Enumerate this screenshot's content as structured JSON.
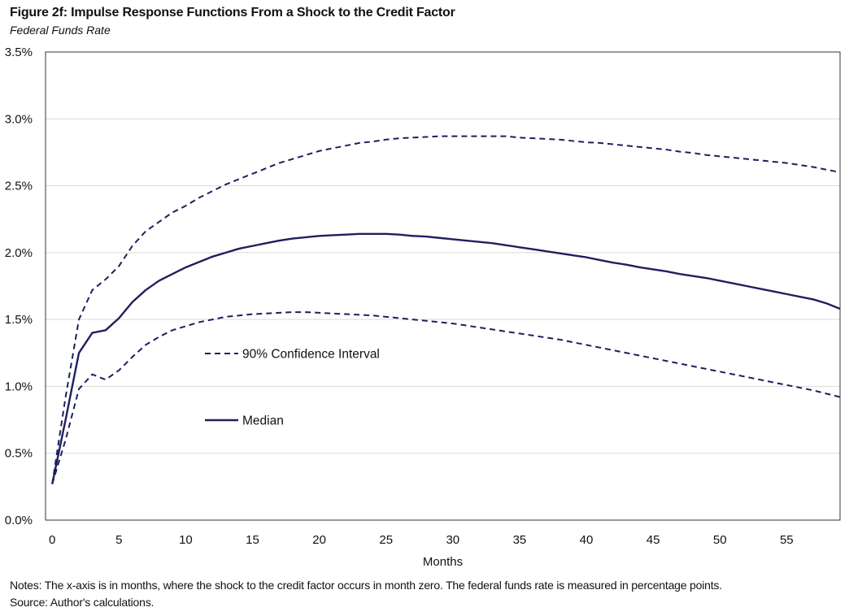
{
  "figure": {
    "title": "Figure 2f: Impulse Response Functions From a Shock to the Credit Factor",
    "subtitle": "Federal Funds Rate",
    "notes": "Notes: The x-axis is in months, where the shock to the credit factor occurs in month zero. The federal funds rate is measured in percentage points.",
    "source": "Source: Author's calculations."
  },
  "chart_data": {
    "type": "line",
    "title": "Figure 2f: Impulse Response Functions From a Shock to the Credit Factor",
    "subtitle": "Federal Funds Rate",
    "xlabel": "Months",
    "ylabel": "",
    "xlim": [
      -0.5,
      59
    ],
    "ylim": [
      0,
      3.5
    ],
    "x_ticks": [
      0,
      5,
      10,
      15,
      20,
      25,
      30,
      35,
      40,
      45,
      50,
      55
    ],
    "y_ticks": [
      0,
      0.5,
      1.0,
      1.5,
      2.0,
      2.5,
      3.0,
      3.5
    ],
    "y_tick_labels": [
      "0.0%",
      "0.5%",
      "1.0%",
      "1.5%",
      "2.0%",
      "2.5%",
      "3.0%",
      "3.5%"
    ],
    "grid": "horizontal",
    "colors": {
      "line": "#1f1f5f",
      "grid": "#d9d9d9",
      "frame": "#333333"
    },
    "x": [
      0,
      1,
      2,
      3,
      4,
      5,
      6,
      7,
      8,
      9,
      10,
      11,
      12,
      13,
      14,
      15,
      16,
      17,
      18,
      19,
      20,
      21,
      22,
      23,
      24,
      25,
      26,
      27,
      28,
      29,
      30,
      31,
      32,
      33,
      34,
      35,
      36,
      37,
      38,
      39,
      40,
      41,
      42,
      43,
      44,
      45,
      46,
      47,
      48,
      49,
      50,
      51,
      52,
      53,
      54,
      55,
      56,
      57,
      58,
      59
    ],
    "series": [
      {
        "name": "Median",
        "style": "solid",
        "values": [
          0.27,
          0.75,
          1.25,
          1.4,
          1.42,
          1.51,
          1.63,
          1.72,
          1.79,
          1.84,
          1.89,
          1.93,
          1.97,
          2.0,
          2.03,
          2.05,
          2.07,
          2.09,
          2.105,
          2.115,
          2.125,
          2.13,
          2.135,
          2.14,
          2.14,
          2.14,
          2.135,
          2.125,
          2.12,
          2.11,
          2.1,
          2.09,
          2.08,
          2.07,
          2.055,
          2.04,
          2.025,
          2.01,
          1.995,
          1.98,
          1.965,
          1.945,
          1.925,
          1.91,
          1.89,
          1.875,
          1.86,
          1.84,
          1.825,
          1.81,
          1.79,
          1.77,
          1.75,
          1.73,
          1.71,
          1.69,
          1.67,
          1.65,
          1.62,
          1.58
        ]
      },
      {
        "name": "90% Confidence Interval",
        "style": "dashed",
        "values": [
          0.27,
          0.92,
          1.5,
          1.72,
          1.8,
          1.9,
          2.05,
          2.16,
          2.23,
          2.3,
          2.35,
          2.41,
          2.46,
          2.51,
          2.55,
          2.59,
          2.63,
          2.67,
          2.7,
          2.73,
          2.76,
          2.78,
          2.8,
          2.82,
          2.83,
          2.845,
          2.855,
          2.86,
          2.865,
          2.87,
          2.87,
          2.87,
          2.87,
          2.87,
          2.87,
          2.86,
          2.855,
          2.85,
          2.845,
          2.835,
          2.825,
          2.82,
          2.81,
          2.8,
          2.79,
          2.78,
          2.77,
          2.755,
          2.745,
          2.73,
          2.72,
          2.71,
          2.7,
          2.69,
          2.68,
          2.67,
          2.655,
          2.64,
          2.62,
          2.6
        ]
      },
      {
        "name": "",
        "style": "dashed",
        "values": [
          0.27,
          0.6,
          0.98,
          1.09,
          1.05,
          1.12,
          1.22,
          1.31,
          1.37,
          1.42,
          1.45,
          1.48,
          1.5,
          1.52,
          1.53,
          1.54,
          1.545,
          1.55,
          1.555,
          1.555,
          1.55,
          1.545,
          1.54,
          1.535,
          1.53,
          1.52,
          1.51,
          1.5,
          1.49,
          1.48,
          1.47,
          1.455,
          1.44,
          1.425,
          1.41,
          1.395,
          1.38,
          1.365,
          1.35,
          1.33,
          1.31,
          1.29,
          1.27,
          1.25,
          1.23,
          1.21,
          1.19,
          1.17,
          1.15,
          1.13,
          1.11,
          1.09,
          1.07,
          1.05,
          1.03,
          1.01,
          0.99,
          0.97,
          0.945,
          0.92
        ]
      }
    ],
    "legend": {
      "placement": "inside-left",
      "entries": [
        {
          "label": "90% Confidence Interval",
          "style": "dashed"
        },
        {
          "label": "Median",
          "style": "solid"
        }
      ]
    }
  }
}
